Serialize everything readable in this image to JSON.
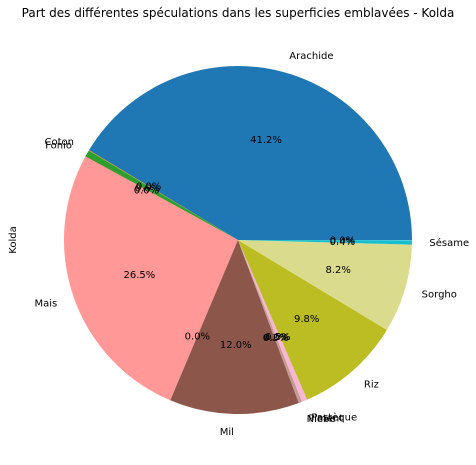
{
  "chart_data": {
    "type": "pie",
    "title": "Part des différentes spéculations dans les superficies emblavées - Kolda",
    "ylabel": "Kolda",
    "slices": [
      {
        "label": "Arachide",
        "value": 41.2,
        "pct_label": "41.2%",
        "color": "#1f77b4"
      },
      {
        "label": "Coton",
        "value": 0.05,
        "pct_label": "0.0%",
        "color": "#ff7f0e"
      },
      {
        "label": "Fonio",
        "value": 0.6,
        "pct_label": "0.6%",
        "color": "#2ca02c"
      },
      {
        "label": "",
        "value": 0.02,
        "pct_label": "0.0%",
        "color": "#d62728"
      },
      {
        "label": "Mais",
        "value": 26.5,
        "pct_label": "26.5%",
        "color": "#ff9896"
      },
      {
        "label": "",
        "value": 0.0,
        "pct_label": "0.0%",
        "color": "#9467bd"
      },
      {
        "label": "Mil",
        "value": 12.0,
        "pct_label": "12.0%",
        "color": "#8c564b"
      },
      {
        "label": "Niebe",
        "value": 0.3,
        "pct_label": "0.3%",
        "color": "#c49c94"
      },
      {
        "label": "Piment",
        "value": 0.02,
        "pct_label": "0.0%",
        "color": "#e377c2"
      },
      {
        "label": "Pastèque",
        "value": 0.5,
        "pct_label": "0.5%",
        "color": "#f7b6d2"
      },
      {
        "label": "Riz",
        "value": 9.8,
        "pct_label": "9.8%",
        "color": "#bcbd22"
      },
      {
        "label": "Sorgho",
        "value": 8.2,
        "pct_label": "8.2%",
        "color": "#dbdb8d"
      },
      {
        "label": "Sésame",
        "value": 0.4,
        "pct_label": "0.4%",
        "color": "#17becf"
      },
      {
        "label": "",
        "value": 0.02,
        "pct_label": "0.0%",
        "color": "#9edae5"
      }
    ]
  }
}
